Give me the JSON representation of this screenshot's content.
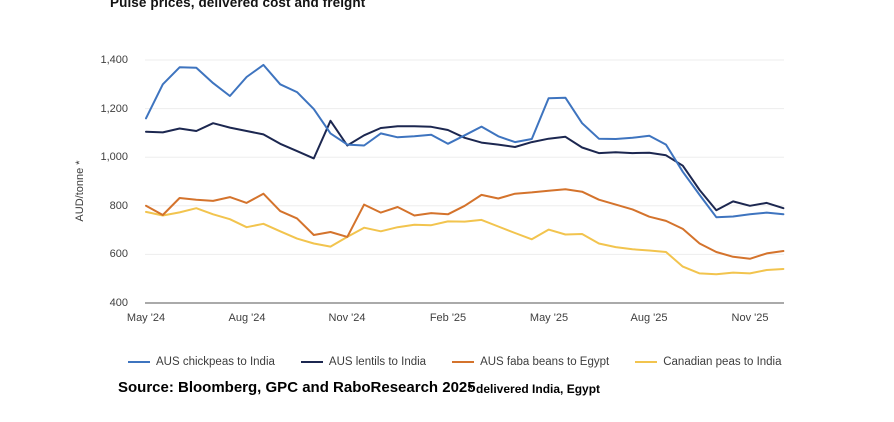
{
  "title": "Pulse prices, delivered cost and freight",
  "source": "Source: Bloomberg, GPC and RaboResearch 2025",
  "footnote": "* delivered India, Egypt",
  "y_axis": {
    "title": "AUD/tonne *",
    "tick_labels": [
      "1,400",
      "1,200",
      "1,000",
      "800",
      "600",
      "400"
    ],
    "tick_values": [
      1400,
      1200,
      1000,
      800,
      600,
      400
    ]
  },
  "x_axis": {
    "tick_labels": [
      "May '24",
      "Aug '24",
      "Nov '24",
      "Feb '25",
      "May '25",
      "Aug '25",
      "Nov '25"
    ],
    "tick_months": [
      0,
      3,
      6,
      9,
      12,
      15,
      18
    ]
  },
  "colors": {
    "chickpeas": "#3E74BF",
    "lentils": "#1C2750",
    "faba_beans": "#D4732C",
    "peas": "#F2C44E",
    "gridline": "#EDEDED",
    "axis_line": "#9E9E9E",
    "text": "#404040"
  },
  "chart_data": {
    "type": "line",
    "title": "Pulse prices, delivered cost and freight",
    "ylabel": "AUD/tonne *",
    "ylim": [
      400,
      1400
    ],
    "grid": "horizontal",
    "legend_position": "bottom",
    "x_description": "Fortnightly observations from May 2024 to early Dec 2025; x expressed as months after May 2024",
    "x_tick_labels": [
      "May '24",
      "Aug '24",
      "Nov '24",
      "Feb '25",
      "May '25",
      "Aug '25",
      "Nov '25"
    ],
    "x_months": [
      0,
      0.5,
      1,
      1.5,
      2,
      2.5,
      3,
      3.5,
      4,
      4.5,
      5,
      5.5,
      6,
      6.5,
      7,
      7.5,
      8,
      8.5,
      9,
      9.5,
      10,
      10.5,
      11,
      11.5,
      12,
      12.5,
      13,
      13.5,
      14,
      14.5,
      15,
      15.5,
      16,
      16.5,
      17,
      17.5,
      18,
      18.5,
      19
    ],
    "series": [
      {
        "name": "AUS chickpeas to India",
        "color": "#3E74BF",
        "values": [
          1160,
          1300,
          1370,
          1368,
          1305,
          1252,
          1330,
          1380,
          1300,
          1268,
          1198,
          1098,
          1052,
          1048,
          1098,
          1082,
          1086,
          1092,
          1055,
          1090,
          1126,
          1086,
          1062,
          1075,
          1243,
          1245,
          1140,
          1076,
          1075,
          1080,
          1088,
          1052,
          940,
          845,
          753,
          756,
          765,
          772,
          765
        ]
      },
      {
        "name": "AUS lentils to India",
        "color": "#1C2750",
        "values": [
          1105,
          1102,
          1118,
          1108,
          1140,
          1122,
          1108,
          1094,
          1055,
          1025,
          995,
          1150,
          1048,
          1090,
          1120,
          1127,
          1127,
          1125,
          1112,
          1080,
          1060,
          1052,
          1042,
          1062,
          1076,
          1084,
          1040,
          1017,
          1020,
          1017,
          1018,
          1008,
          965,
          865,
          782,
          818,
          800,
          812,
          790
        ]
      },
      {
        "name": "AUS faba beans to Egypt",
        "color": "#D4732C",
        "values": [
          800,
          762,
          832,
          825,
          820,
          836,
          812,
          850,
          778,
          748,
          680,
          692,
          672,
          805,
          772,
          795,
          760,
          770,
          765,
          800,
          845,
          830,
          850,
          855,
          862,
          868,
          858,
          825,
          805,
          785,
          755,
          738,
          705,
          645,
          610,
          590,
          582,
          604,
          614
        ]
      },
      {
        "name": "Canadian peas to India",
        "color": "#F2C44E",
        "values": [
          775,
          760,
          773,
          790,
          765,
          745,
          712,
          726,
          695,
          665,
          645,
          632,
          672,
          710,
          695,
          712,
          722,
          720,
          736,
          735,
          742,
          715,
          688,
          662,
          702,
          682,
          684,
          645,
          630,
          621,
          616,
          610,
          550,
          522,
          518,
          525,
          522,
          536,
          540
        ]
      }
    ]
  }
}
